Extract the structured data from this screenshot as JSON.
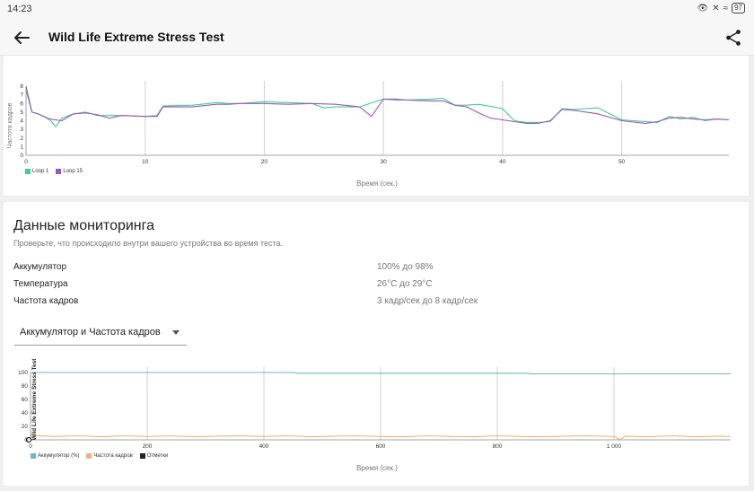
{
  "status": {
    "time": "14:23",
    "battery": "97"
  },
  "app": {
    "title": "Wild Life Extreme Stress Test"
  },
  "fps_chart": {
    "ylabel": "Частота кадров",
    "xlabel": "Время (сек.)",
    "y_ticks": [
      "0",
      "1",
      "2",
      "3",
      "4",
      "5",
      "6",
      "7",
      "8"
    ],
    "x_ticks": [
      "0",
      "10",
      "20",
      "30",
      "40",
      "50"
    ],
    "legend": [
      {
        "name": "Loop 1",
        "color": "#3fcf8e"
      },
      {
        "name": "Loop 15",
        "color": "#9b59b6"
      }
    ]
  },
  "monitoring": {
    "title": "Данные мониторинга",
    "subtitle": "Проверьте, что происходило внутри вашего устройства во время теста.",
    "rows": [
      {
        "label": "Аккумулятор",
        "value": "100% до 98%"
      },
      {
        "label": "Температура",
        "value": "26°C до 29°C"
      },
      {
        "label": "Частота кадров",
        "value": "3 кадр/сек до 8 кадр/сек"
      }
    ],
    "dropdown": {
      "selected": "Аккумулятор и Частота кадров"
    }
  },
  "battery_chart": {
    "ylabel": "Wild Life Extreme Stress Test",
    "xlabel": "Время (сек.)",
    "y_ticks": [
      "0",
      "20",
      "40",
      "60",
      "80",
      "100"
    ],
    "x_ticks": [
      "0",
      "200",
      "400",
      "600",
      "800",
      "1 000"
    ],
    "legend": [
      {
        "name": "Аккумулятор (%)",
        "color": "#6fb5c8"
      },
      {
        "name": "Частота кадров",
        "color": "#f0b27a"
      },
      {
        "name": "Отметки",
        "color": "#222222"
      }
    ]
  },
  "chart_data": [
    {
      "type": "line",
      "xlabel": "Время (сек.)",
      "ylabel": "Частота кадров",
      "xlim": [
        0,
        59
      ],
      "ylim": [
        0,
        8
      ],
      "legend_position": "bottom-left",
      "series": [
        {
          "name": "Loop 1",
          "color": "#3fcf8e",
          "x": [
            0,
            0.5,
            1,
            2,
            2.5,
            3,
            4,
            5,
            6,
            8,
            10,
            11,
            11.5,
            14,
            16,
            17,
            18,
            20,
            22,
            24,
            25,
            26,
            28,
            30,
            31,
            32,
            34,
            35,
            36,
            37,
            38,
            40,
            41,
            42,
            43,
            44,
            45,
            46,
            48,
            50,
            52,
            53,
            54,
            55,
            56,
            57,
            58,
            59
          ],
          "y": [
            7.5,
            5,
            4.8,
            4.1,
            3.3,
            4.3,
            4.8,
            5,
            4.6,
            4.6,
            4.5,
            4.6,
            5.7,
            5.8,
            6.1,
            6,
            6,
            6.2,
            6.1,
            6,
            5.5,
            5.6,
            5.6,
            6.5,
            6.4,
            6.4,
            6.5,
            6.6,
            5.8,
            5.8,
            5.9,
            5.4,
            4,
            3.8,
            3.8,
            3.9,
            5.4,
            5.3,
            5.5,
            4.1,
            3.9,
            3.8,
            4.5,
            4.2,
            4.4,
            4,
            4.2,
            4.1
          ]
        },
        {
          "name": "Loop 15",
          "color": "#9b59b6",
          "x": [
            0,
            0.5,
            1,
            2,
            3,
            4,
            5,
            6,
            7,
            8,
            10,
            11,
            11.5,
            14,
            16,
            17,
            18,
            20,
            22,
            24,
            26,
            28,
            29,
            30,
            31,
            32,
            34,
            35,
            36,
            37,
            38,
            39,
            40,
            41,
            42,
            43,
            44,
            45,
            46,
            48,
            50,
            52,
            53,
            54,
            55,
            56,
            57,
            58,
            59
          ],
          "y": [
            8,
            5,
            4.8,
            4.2,
            4,
            4.8,
            4.9,
            4.7,
            4.3,
            4.6,
            4.5,
            4.5,
            5.6,
            5.6,
            5.9,
            5.9,
            6,
            6,
            5.9,
            6,
            5.9,
            5.6,
            4.5,
            6.5,
            6.5,
            6.4,
            6.3,
            6.3,
            5.8,
            5.6,
            4.9,
            4.3,
            4.1,
            3.9,
            3.7,
            3.7,
            4,
            5.3,
            5.2,
            4.8,
            4,
            3.7,
            3.9,
            4.3,
            4.4,
            4.2,
            4.1,
            4.2,
            4.1
          ]
        }
      ]
    },
    {
      "type": "line",
      "xlabel": "Время (сек.)",
      "ylabel": "Wild Life Extreme Stress Test",
      "xlim": [
        0,
        1200
      ],
      "ylim": [
        0,
        100
      ],
      "legend_position": "bottom-left",
      "series": [
        {
          "name": "Аккумулятор (%)",
          "color": "#6fb5c8",
          "x": [
            0,
            450,
            460,
            850,
            860,
            1200
          ],
          "y": [
            100,
            100,
            99,
            99,
            98,
            98
          ]
        },
        {
          "name": "Частота кадров",
          "color": "#f0b27a",
          "x": [
            0,
            40,
            80,
            120,
            160,
            200,
            240,
            280,
            320,
            360,
            400,
            440,
            480,
            520,
            560,
            600,
            640,
            680,
            720,
            760,
            800,
            840,
            880,
            920,
            960,
            1000,
            1010,
            1020,
            1060,
            1100,
            1140,
            1180,
            1200
          ],
          "y": [
            7,
            5,
            6,
            4.5,
            6,
            5,
            6,
            4.5,
            5.5,
            6,
            5,
            6,
            4.5,
            5.5,
            6,
            5,
            4.5,
            6,
            5,
            4.5,
            6,
            5,
            4.5,
            5.5,
            6,
            5,
            0.5,
            5.5,
            4.5,
            6,
            4.5,
            5.5,
            5
          ]
        }
      ]
    }
  ]
}
